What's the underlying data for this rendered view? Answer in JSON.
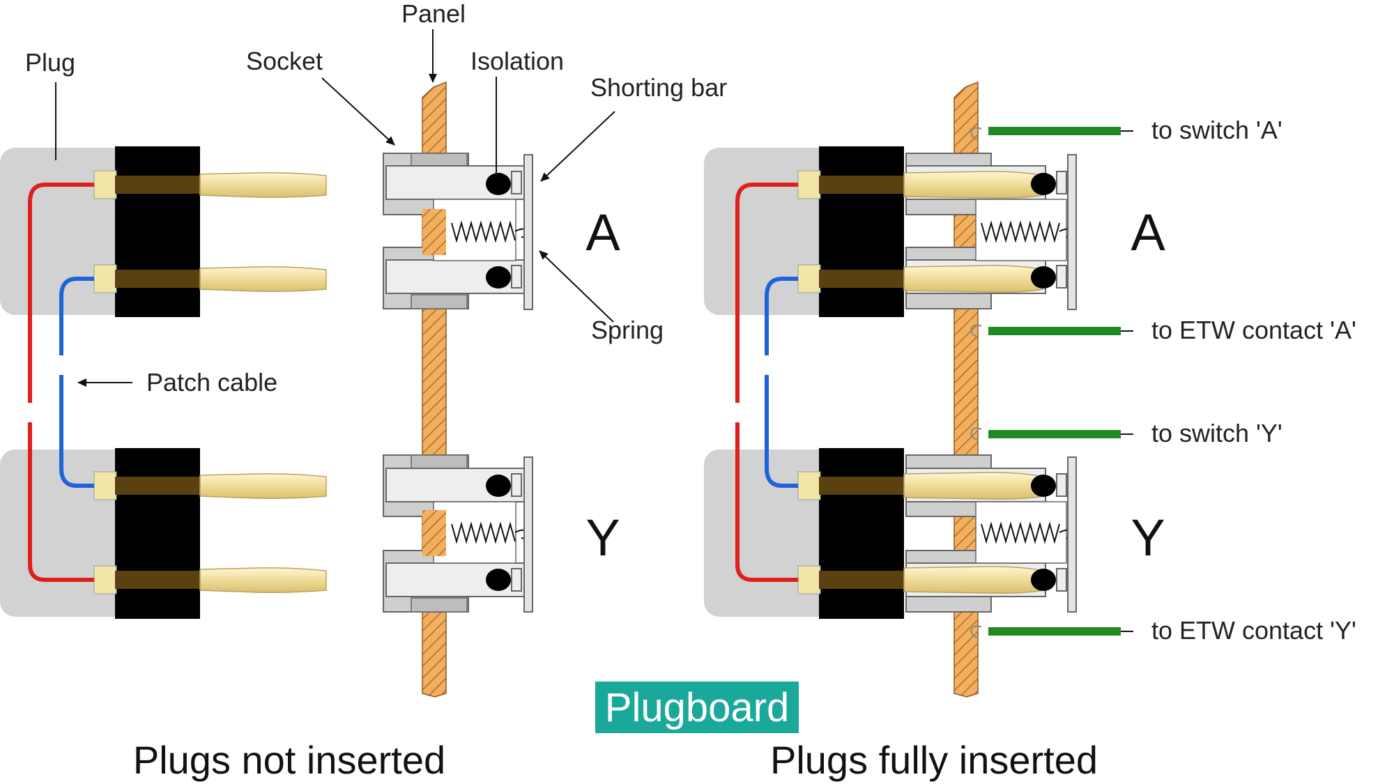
{
  "labels": {
    "panel": "Panel",
    "plug": "Plug",
    "socket": "Socket",
    "isolation": "Isolation",
    "shorting_bar": "Shorting bar",
    "spring": "Spring",
    "patch_cable": "Patch cable"
  },
  "groups": {
    "a": "A",
    "y": "Y"
  },
  "wires": {
    "switch_a": "to switch 'A'",
    "etw_a": "to ETW contact 'A'",
    "switch_y": "to switch 'Y'",
    "etw_y": "to ETW contact 'Y'"
  },
  "captions": {
    "left": "Plugs not inserted",
    "right": "Plugs fully inserted"
  },
  "badge": {
    "text": "Plugboard",
    "color": "#19a89a"
  },
  "colors": {
    "plug_body": "#d2d2d2",
    "plug_block": "#000000",
    "pin": "#f3e4a8",
    "pin_band": "#5a4210",
    "cable_red": "#e01e1e",
    "cable_blue": "#1e64d8",
    "panel_wood": "#f0b060",
    "wire_green": "#1f8a1f",
    "socket_grey": "#c8c8c8"
  }
}
